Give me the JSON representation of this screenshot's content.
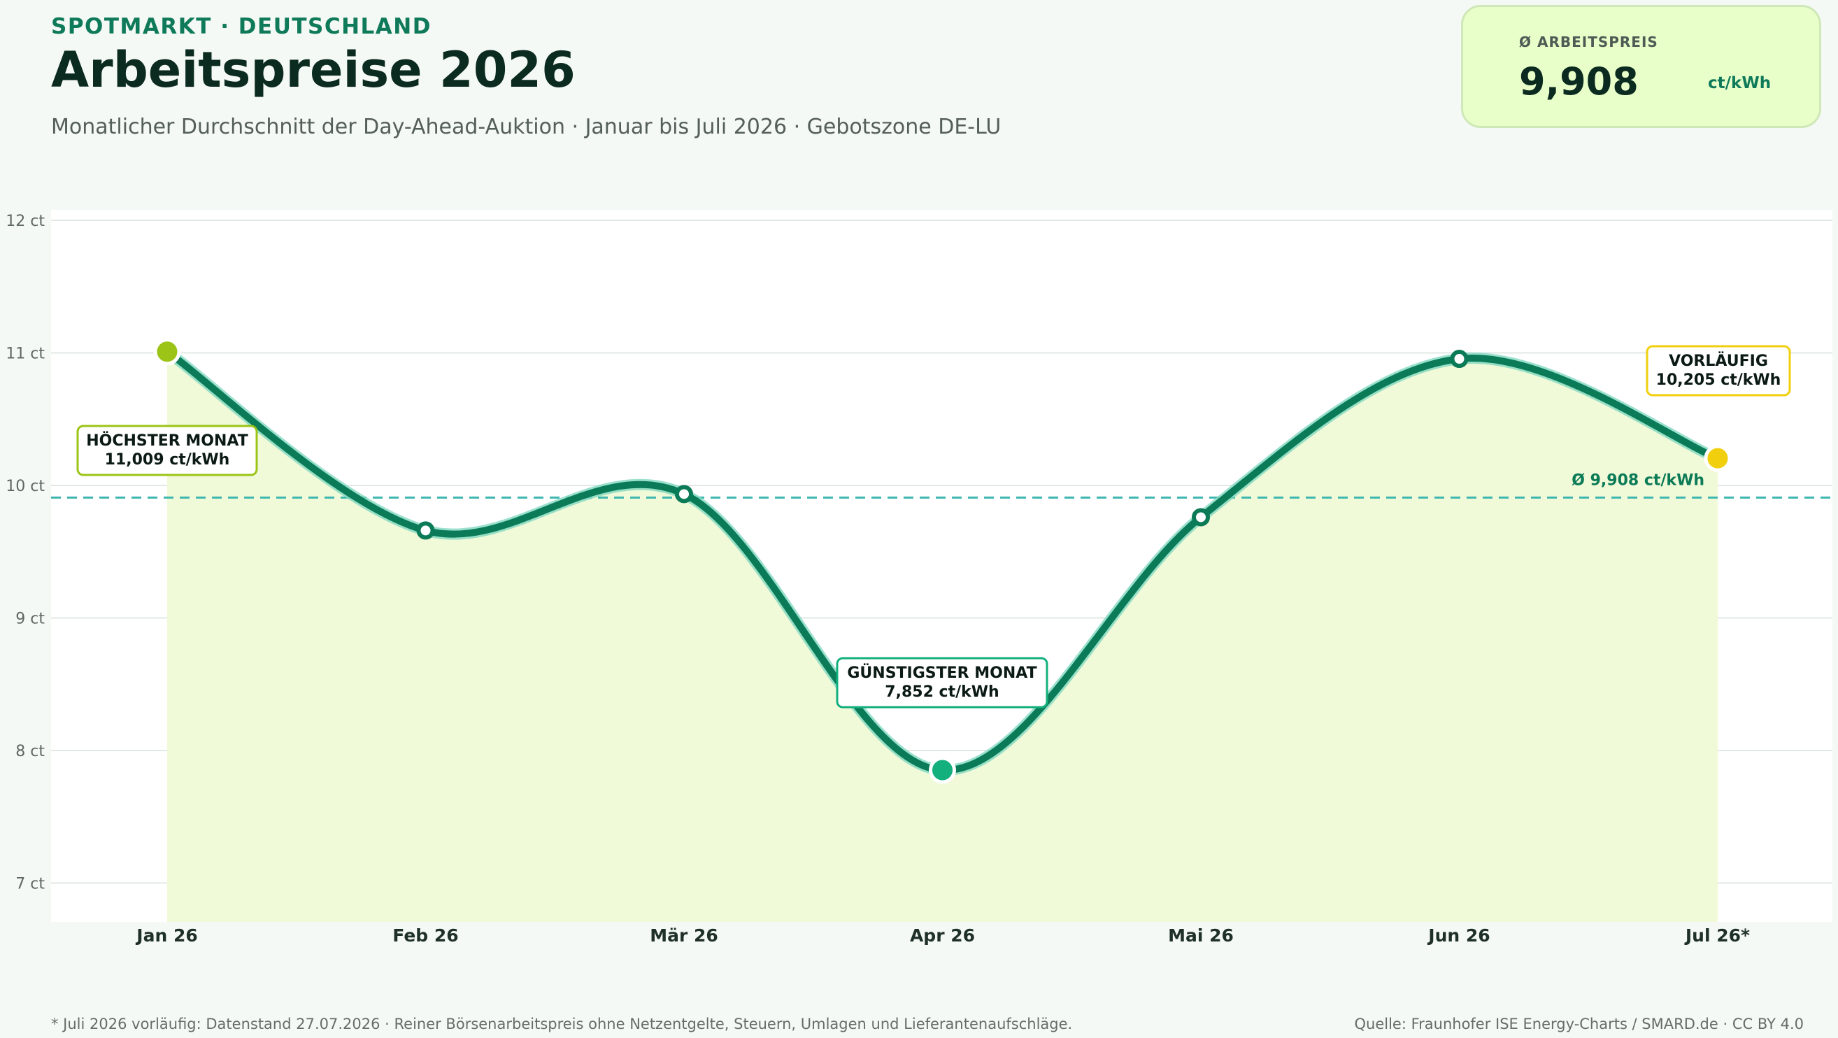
{
  "header": {
    "eyebrow": "SPOTMARKT · DEUTSCHLAND",
    "title": "Arbeitspreise 2026",
    "subtitle": "Monatlicher Durchschnitt der Day-Ahead-Auktion · Januar bis Juli 2026 · Gebotszone DE-LU"
  },
  "kpi": {
    "label": "Ø ARBEITSPREIS",
    "value": "9,908",
    "unit": "ct/kWh"
  },
  "chart_data": {
    "type": "line",
    "categories": [
      "Jan 26",
      "Feb 26",
      "Mär 26",
      "Apr 26",
      "Mai 26",
      "Jun 26",
      "Jul 26*"
    ],
    "series": [
      {
        "values": [
          11.009,
          9.66,
          9.935,
          7.852,
          9.76,
          10.955,
          10.205
        ]
      }
    ],
    "ylim": [
      6.7,
      12
    ],
    "yticks": [
      7,
      8,
      9,
      10,
      11,
      12
    ],
    "ytick_labels": [
      "7 ct",
      "8 ct",
      "9 ct",
      "10 ct",
      "11 ct",
      "12 ct"
    ],
    "grid": true,
    "area_fill": true,
    "average": {
      "value": 9.908,
      "label": "Ø 9,908 ct/kWh"
    },
    "annotations": [
      {
        "index": 0,
        "title": "HÖCHSTER MONAT",
        "text": "11,009 ct/kWh",
        "color": "#9cc416"
      },
      {
        "index": 3,
        "title": "GÜNSTIGSTER MONAT",
        "text": "7,852 ct/kWh",
        "color": "#13b07e"
      },
      {
        "index": 6,
        "title": "VORLÄUFIG",
        "text": "10,205 ct/kWh",
        "color": "#f2cf0c"
      }
    ],
    "colors": {
      "line": "#0b7a57",
      "line_glow": "#7fd8c0",
      "area": "#f0f9d8",
      "average_line": "#3db7b0",
      "average_label": "#0b7a57"
    }
  },
  "footer": {
    "footnote": "* Juli 2026 vorläufig: Datenstand 27.07.2026 · Reiner Börsenarbeitspreis ohne Netzentgelte, Steuern, Umlagen und Lieferantenaufschläge.",
    "source": "Quelle: Fraunhofer ISE Energy-Charts / SMARD.de · CC BY 4.0"
  }
}
